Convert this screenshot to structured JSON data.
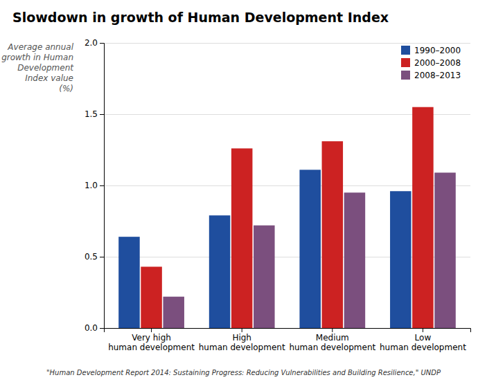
{
  "chart_data": {
    "type": "bar",
    "title": "Slowdown in growth of Human Development Index",
    "y_label": "Average annual\ngrowth in Human\nDevelopment\nIndex value\n(%)",
    "footnote": "\"Human Development Report 2014: Sustaining Progress: Reducing Vulnerabilities and Building Resilience,\" UNDP",
    "categories": [
      "Very high\nhuman development",
      "High\nhuman development",
      "Medium\nhuman development",
      "Low\nhuman development"
    ],
    "series": [
      {
        "name": "1990–2000",
        "color": "#1f4e9e",
        "values": [
          0.64,
          0.79,
          1.11,
          0.96
        ]
      },
      {
        "name": "2000–2008",
        "color": "#cc2222",
        "values": [
          0.43,
          1.26,
          1.31,
          1.55
        ]
      },
      {
        "name": "2008–2013",
        "color": "#7b4f7e",
        "values": [
          0.22,
          0.72,
          0.95,
          1.09
        ]
      }
    ],
    "ylim": [
      0.0,
      2.0
    ],
    "yticks": [
      {
        "value": 0.0,
        "label": "0.0"
      },
      0.5,
      {
        "value": 1.0,
        "label": "1.0"
      },
      1.5,
      {
        "value": 2.0,
        "label": "2.0"
      }
    ],
    "grid": true,
    "legend": "upper right"
  }
}
